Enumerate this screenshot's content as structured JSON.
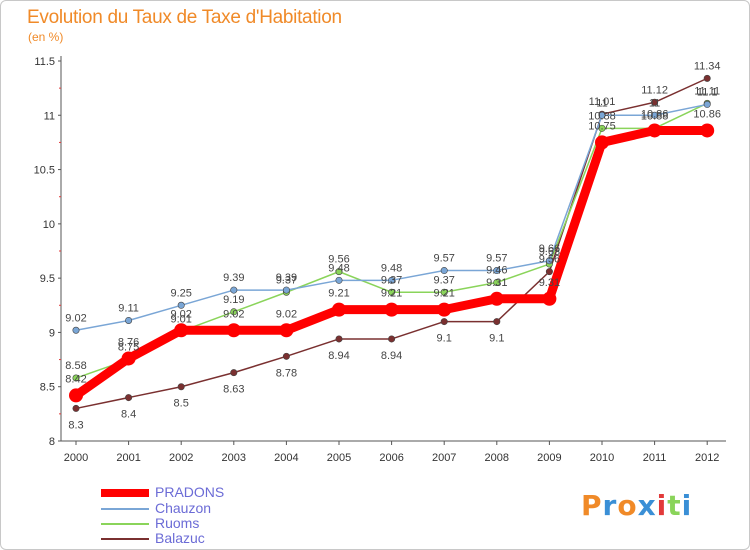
{
  "chart_data": {
    "type": "line",
    "title": "Evolution du Taux de Taxe d'Habitation",
    "subtitle": "(en %)",
    "x": [
      "2000",
      "2001",
      "2002",
      "2003",
      "2004",
      "2005",
      "2006",
      "2007",
      "2008",
      "2009",
      "2010",
      "2011",
      "2012"
    ],
    "ylim": [
      8,
      11.5
    ],
    "yticks": [
      "8",
      "8.5",
      "9",
      "9.5",
      "10",
      "10.5",
      "11",
      "11.5"
    ],
    "grid": false,
    "legend_position": "bottom-left",
    "series": [
      {
        "name": "PRADONS",
        "color": "#ff0000",
        "values": [
          8.42,
          8.76,
          9.02,
          9.02,
          9.02,
          9.21,
          9.21,
          9.21,
          9.31,
          9.31,
          10.75,
          10.86,
          10.86
        ],
        "labels": [
          "8.42",
          "8.76",
          "9.02",
          "9.02",
          "9.02",
          "9.21",
          "9.21",
          "9.21",
          "9.31",
          "9.31",
          "10.75",
          "10.86",
          "10.86"
        ]
      },
      {
        "name": "Chauzon",
        "color": "#7aa6d6",
        "values": [
          9.02,
          9.11,
          9.25,
          9.39,
          9.39,
          9.48,
          9.48,
          9.57,
          9.57,
          9.66,
          11.0,
          11.0,
          11.1
        ],
        "labels": [
          "9.02",
          "9.11",
          "9.25",
          "9.39",
          "9.39",
          "9.48",
          "9.48",
          "9.57",
          "9.57",
          "9.66",
          "11",
          "11",
          "11.1"
        ]
      },
      {
        "name": "Ruoms",
        "color": "#8ad45a",
        "values": [
          8.58,
          8.75,
          9.01,
          9.19,
          9.37,
          9.56,
          9.37,
          9.37,
          9.46,
          9.63,
          10.88,
          10.88,
          11.11
        ],
        "labels": [
          "8.58",
          "8.75",
          "9.01",
          "9.19",
          "9.37",
          "9.56",
          "9.37",
          "9.37",
          "9.46",
          "9.63",
          "10.88",
          "10.88",
          "11.11"
        ]
      },
      {
        "name": "Balazuc",
        "color": "#7a3030",
        "values": [
          8.3,
          8.4,
          8.5,
          8.63,
          8.78,
          8.94,
          8.94,
          9.1,
          9.1,
          9.56,
          11.01,
          11.12,
          11.34
        ],
        "labels": [
          "8.3",
          "8.4",
          "8.5",
          "8.63",
          "8.78",
          "8.94",
          "8.94",
          "9.1",
          "9.1",
          "9.56",
          "11.01",
          "11.12",
          "11.34"
        ]
      }
    ]
  },
  "logo": {
    "text": "Proxiti",
    "letters": [
      "P",
      "r",
      "o",
      "x",
      "i",
      "t",
      "i"
    ],
    "colors": [
      "#f08a28",
      "#3a8fd6",
      "#f08a28",
      "#3a8fd6",
      "#e23a3a",
      "#8ad45a",
      "#3a8fd6"
    ]
  }
}
